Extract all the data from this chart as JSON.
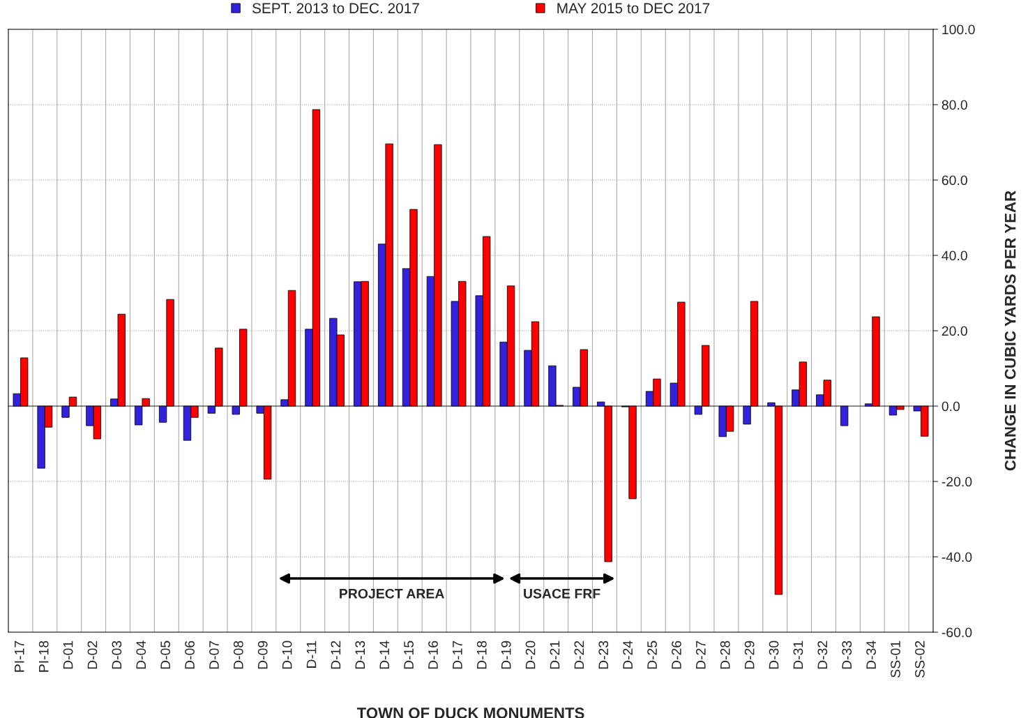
{
  "chart_data": {
    "type": "bar",
    "xlabel": "TOWN OF DUCK MONUMENTS",
    "ylabel": "CHANGE IN CUBIC YARDS PER YEAR",
    "categories": [
      "PI-17",
      "PI-18",
      "D-01",
      "D-02",
      "D-03",
      "D-04",
      "D-05",
      "D-06",
      "D-07",
      "D-08",
      "D-09",
      "D-10",
      "D-11",
      "D-12",
      "D-13",
      "D-14",
      "D-15",
      "D-16",
      "D-17",
      "D-18",
      "D-19",
      "D-20",
      "D-21",
      "D-22",
      "D-23",
      "D-24",
      "D-25",
      "D-26",
      "D-27",
      "D-28",
      "D-29",
      "D-30",
      "D-31",
      "D-32",
      "D-33",
      "D-34",
      "SS-01",
      "SS-02"
    ],
    "series": [
      {
        "name": "SEPT. 2013 to DEC. 2017",
        "color": "#3322dd",
        "values": [
          3.3,
          -16.5,
          -3.0,
          -5.2,
          1.9,
          -5.0,
          -4.3,
          -9.1,
          -1.9,
          -2.2,
          -1.9,
          1.7,
          20.4,
          23.3,
          33.0,
          43.0,
          36.5,
          34.4,
          27.8,
          29.3,
          17.0,
          14.8,
          10.7,
          5.0,
          1.1,
          -0.2,
          3.9,
          6.1,
          -2.2,
          -8.1,
          -4.8,
          0.9,
          4.3,
          3.0,
          -5.2,
          0.6,
          -2.4,
          -1.3
        ]
      },
      {
        "name": "MAY 2015 to DEC 2017",
        "color": "#ff0000",
        "values": [
          12.8,
          -5.6,
          2.4,
          -8.7,
          24.4,
          2.0,
          28.3,
          -3.0,
          15.4,
          20.4,
          -19.4,
          30.7,
          78.7,
          18.9,
          33.1,
          69.6,
          52.2,
          69.4,
          33.1,
          45.0,
          31.9,
          22.4,
          0.2,
          15.0,
          -41.3,
          -24.6,
          7.2,
          27.6,
          16.1,
          -6.7,
          27.8,
          -50.0,
          11.7,
          6.9,
          null,
          23.7,
          -0.9,
          -8.0
        ]
      }
    ],
    "ylim": [
      -60,
      100
    ],
    "yticks": [
      {
        "value": -60,
        "label": "-60.0"
      },
      {
        "value": -40,
        "label": "-40.0"
      },
      {
        "value": -20,
        "label": "-20.0"
      },
      {
        "value": 0,
        "label": "0.0"
      },
      {
        "value": 20,
        "label": "20.0"
      },
      {
        "value": 40,
        "label": "40.0"
      },
      {
        "value": 60,
        "label": "60.0"
      },
      {
        "value": 80,
        "label": "80.0"
      },
      {
        "value": 100,
        "label": "100.0"
      }
    ],
    "annotations": [
      "PROJECT AREA",
      "USACE FRF"
    ],
    "grid": true,
    "legend": "top"
  }
}
